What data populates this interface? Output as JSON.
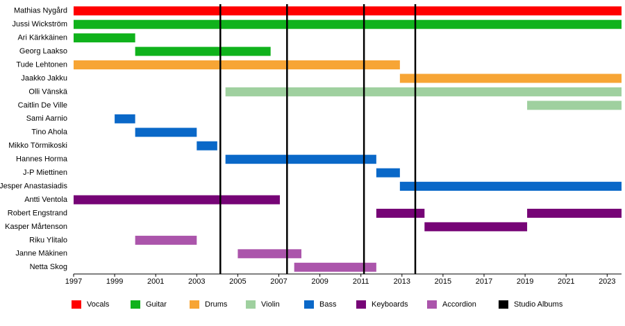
{
  "chart_data": {
    "type": "timeline",
    "categories": [
      "Mathias Nygård",
      "Jussi Wickström",
      "Ari Kärkkäinen",
      "Georg Laakso",
      "Tude Lehtonen",
      "Jaakko Jakku",
      "Olli Vänskä",
      "Caitlin De Ville",
      "Sami Aarnio",
      "Tino Ahola",
      "Mikko Törmikoski",
      "Hannes Horma",
      "J-P Miettinen",
      "Jesper Anastasiadis",
      "Antti Ventola",
      "Robert Engstrand",
      "Kasper Mårtenson",
      "Riku Ylitalo",
      "Janne Mäkinen",
      "Netta Skog"
    ],
    "xlim": [
      1997,
      2023.7
    ],
    "xticks": [
      1997,
      1999,
      2001,
      2003,
      2005,
      2007,
      2009,
      2011,
      2013,
      2015,
      2017,
      2019,
      2021,
      2023
    ],
    "series": [
      {
        "name": "Vocals",
        "color": "#ff0000",
        "values": [
          [
            [
              1997,
              2023.7
            ]
          ],
          null,
          null,
          null,
          null,
          null,
          null,
          null,
          null,
          null,
          null,
          null,
          null,
          null,
          null,
          null,
          null,
          null,
          null,
          null
        ]
      },
      {
        "name": "Guitar",
        "color": "#10b21c",
        "values": [
          null,
          [
            [
              1997,
              2023.7
            ]
          ],
          [
            [
              1997,
              2000
            ]
          ],
          [
            [
              2000,
              2006.6
            ]
          ],
          null,
          null,
          null,
          null,
          null,
          null,
          null,
          null,
          null,
          null,
          null,
          null,
          null,
          null,
          null,
          null
        ]
      },
      {
        "name": "Drums",
        "color": "#f7a535",
        "values": [
          null,
          null,
          null,
          null,
          [
            [
              1997,
              2012.9
            ]
          ],
          [
            [
              2012.9,
              2023.7
            ]
          ],
          null,
          null,
          null,
          null,
          null,
          null,
          null,
          null,
          null,
          null,
          null,
          null,
          null,
          null
        ]
      },
      {
        "name": "Violin",
        "color": "#9fd09f",
        "values": [
          null,
          null,
          null,
          null,
          null,
          null,
          [
            [
              2004.4,
              2023.7
            ]
          ],
          [
            [
              2019.1,
              2023.7
            ]
          ],
          null,
          null,
          null,
          null,
          null,
          null,
          null,
          null,
          null,
          null,
          null,
          null
        ]
      },
      {
        "name": "Bass",
        "color": "#0a68c8",
        "values": [
          null,
          null,
          null,
          null,
          null,
          null,
          null,
          null,
          [
            [
              1999,
              2000
            ]
          ],
          [
            [
              2000,
              2003
            ]
          ],
          [
            [
              2003,
              2004
            ]
          ],
          [
            [
              2004.4,
              2011.75
            ]
          ],
          [
            [
              2011.75,
              2012.9
            ]
          ],
          [
            [
              2012.9,
              2023.7
            ]
          ],
          null,
          null,
          null,
          null,
          null,
          null
        ]
      },
      {
        "name": "Keyboards",
        "color": "#760476",
        "values": [
          null,
          null,
          null,
          null,
          null,
          null,
          null,
          null,
          null,
          null,
          null,
          null,
          null,
          null,
          [
            [
              1997,
              2007.05
            ]
          ],
          [
            [
              2011.75,
              2014.1
            ],
            [
              2019.1,
              2023.7
            ]
          ],
          [
            [
              2014.1,
              2019.1
            ]
          ],
          null,
          null,
          null
        ]
      },
      {
        "name": "Accordion",
        "color": "#ab55ab",
        "values": [
          null,
          null,
          null,
          null,
          null,
          null,
          null,
          null,
          null,
          null,
          null,
          null,
          null,
          null,
          null,
          null,
          null,
          [
            [
              2000,
              2003
            ]
          ],
          [
            [
              2005,
              2008.1
            ]
          ],
          [
            [
              2007.75,
              2011.75
            ]
          ]
        ]
      }
    ],
    "markers": {
      "name": "Studio Albums",
      "color": "#000000",
      "values": [
        2004.15,
        2007.4,
        2011.15,
        2013.65
      ]
    }
  }
}
